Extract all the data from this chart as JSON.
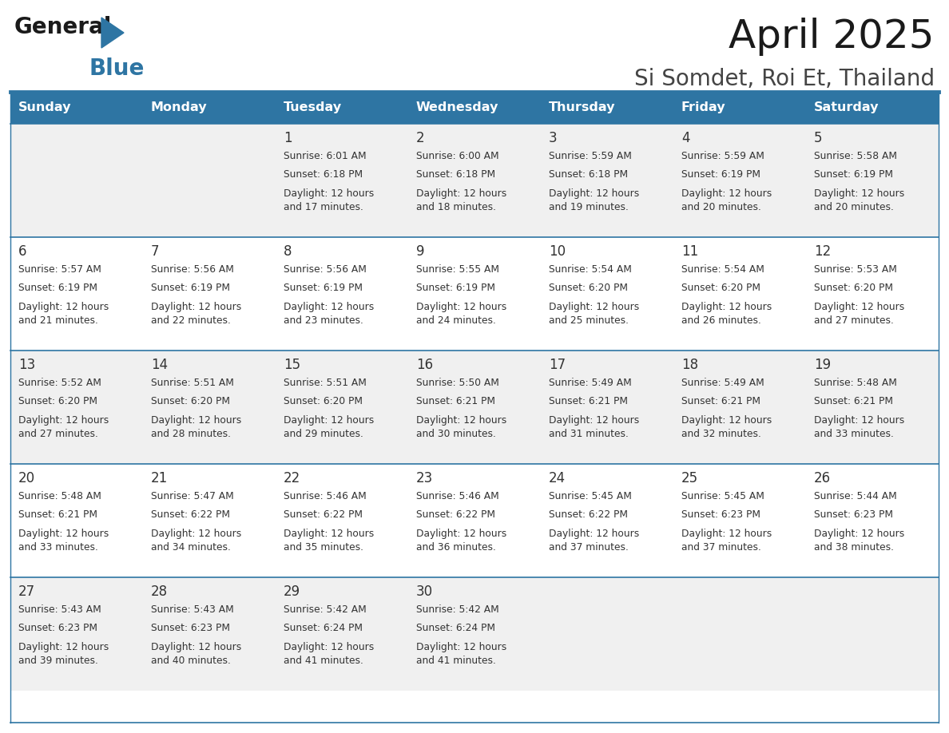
{
  "title": "April 2025",
  "subtitle": "Si Somdet, Roi Et, Thailand",
  "header_color": "#2E75A3",
  "header_text_color": "#FFFFFF",
  "days_of_week": [
    "Sunday",
    "Monday",
    "Tuesday",
    "Wednesday",
    "Thursday",
    "Friday",
    "Saturday"
  ],
  "cell_bg_even": "#F0F0F0",
  "cell_bg_odd": "#FFFFFF",
  "line_color": "#2E75A3",
  "text_color": "#333333",
  "day_num_color": "#333333",
  "logo_color": "#2E75A3",
  "weeks": [
    [
      {
        "day": null,
        "sunrise": null,
        "sunset": null,
        "daylight": null
      },
      {
        "day": null,
        "sunrise": null,
        "sunset": null,
        "daylight": null
      },
      {
        "day": 1,
        "sunrise": "6:01 AM",
        "sunset": "6:18 PM",
        "daylight": "12 hours\nand 17 minutes."
      },
      {
        "day": 2,
        "sunrise": "6:00 AM",
        "sunset": "6:18 PM",
        "daylight": "12 hours\nand 18 minutes."
      },
      {
        "day": 3,
        "sunrise": "5:59 AM",
        "sunset": "6:18 PM",
        "daylight": "12 hours\nand 19 minutes."
      },
      {
        "day": 4,
        "sunrise": "5:59 AM",
        "sunset": "6:19 PM",
        "daylight": "12 hours\nand 20 minutes."
      },
      {
        "day": 5,
        "sunrise": "5:58 AM",
        "sunset": "6:19 PM",
        "daylight": "12 hours\nand 20 minutes."
      }
    ],
    [
      {
        "day": 6,
        "sunrise": "5:57 AM",
        "sunset": "6:19 PM",
        "daylight": "12 hours\nand 21 minutes."
      },
      {
        "day": 7,
        "sunrise": "5:56 AM",
        "sunset": "6:19 PM",
        "daylight": "12 hours\nand 22 minutes."
      },
      {
        "day": 8,
        "sunrise": "5:56 AM",
        "sunset": "6:19 PM",
        "daylight": "12 hours\nand 23 minutes."
      },
      {
        "day": 9,
        "sunrise": "5:55 AM",
        "sunset": "6:19 PM",
        "daylight": "12 hours\nand 24 minutes."
      },
      {
        "day": 10,
        "sunrise": "5:54 AM",
        "sunset": "6:20 PM",
        "daylight": "12 hours\nand 25 minutes."
      },
      {
        "day": 11,
        "sunrise": "5:54 AM",
        "sunset": "6:20 PM",
        "daylight": "12 hours\nand 26 minutes."
      },
      {
        "day": 12,
        "sunrise": "5:53 AM",
        "sunset": "6:20 PM",
        "daylight": "12 hours\nand 27 minutes."
      }
    ],
    [
      {
        "day": 13,
        "sunrise": "5:52 AM",
        "sunset": "6:20 PM",
        "daylight": "12 hours\nand 27 minutes."
      },
      {
        "day": 14,
        "sunrise": "5:51 AM",
        "sunset": "6:20 PM",
        "daylight": "12 hours\nand 28 minutes."
      },
      {
        "day": 15,
        "sunrise": "5:51 AM",
        "sunset": "6:20 PM",
        "daylight": "12 hours\nand 29 minutes."
      },
      {
        "day": 16,
        "sunrise": "5:50 AM",
        "sunset": "6:21 PM",
        "daylight": "12 hours\nand 30 minutes."
      },
      {
        "day": 17,
        "sunrise": "5:49 AM",
        "sunset": "6:21 PM",
        "daylight": "12 hours\nand 31 minutes."
      },
      {
        "day": 18,
        "sunrise": "5:49 AM",
        "sunset": "6:21 PM",
        "daylight": "12 hours\nand 32 minutes."
      },
      {
        "day": 19,
        "sunrise": "5:48 AM",
        "sunset": "6:21 PM",
        "daylight": "12 hours\nand 33 minutes."
      }
    ],
    [
      {
        "day": 20,
        "sunrise": "5:48 AM",
        "sunset": "6:21 PM",
        "daylight": "12 hours\nand 33 minutes."
      },
      {
        "day": 21,
        "sunrise": "5:47 AM",
        "sunset": "6:22 PM",
        "daylight": "12 hours\nand 34 minutes."
      },
      {
        "day": 22,
        "sunrise": "5:46 AM",
        "sunset": "6:22 PM",
        "daylight": "12 hours\nand 35 minutes."
      },
      {
        "day": 23,
        "sunrise": "5:46 AM",
        "sunset": "6:22 PM",
        "daylight": "12 hours\nand 36 minutes."
      },
      {
        "day": 24,
        "sunrise": "5:45 AM",
        "sunset": "6:22 PM",
        "daylight": "12 hours\nand 37 minutes."
      },
      {
        "day": 25,
        "sunrise": "5:45 AM",
        "sunset": "6:23 PM",
        "daylight": "12 hours\nand 37 minutes."
      },
      {
        "day": 26,
        "sunrise": "5:44 AM",
        "sunset": "6:23 PM",
        "daylight": "12 hours\nand 38 minutes."
      }
    ],
    [
      {
        "day": 27,
        "sunrise": "5:43 AM",
        "sunset": "6:23 PM",
        "daylight": "12 hours\nand 39 minutes."
      },
      {
        "day": 28,
        "sunrise": "5:43 AM",
        "sunset": "6:23 PM",
        "daylight": "12 hours\nand 40 minutes."
      },
      {
        "day": 29,
        "sunrise": "5:42 AM",
        "sunset": "6:24 PM",
        "daylight": "12 hours\nand 41 minutes."
      },
      {
        "day": 30,
        "sunrise": "5:42 AM",
        "sunset": "6:24 PM",
        "daylight": "12 hours\nand 41 minutes."
      },
      {
        "day": null,
        "sunrise": null,
        "sunset": null,
        "daylight": null
      },
      {
        "day": null,
        "sunrise": null,
        "sunset": null,
        "daylight": null
      },
      {
        "day": null,
        "sunrise": null,
        "sunset": null,
        "daylight": null
      }
    ]
  ]
}
